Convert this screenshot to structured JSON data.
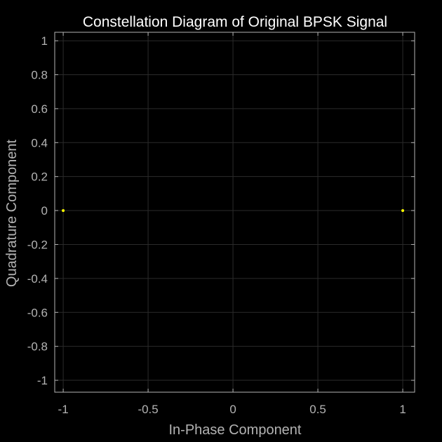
{
  "chart_data": {
    "type": "scatter",
    "title": "Constellation Diagram of Original BPSK Signal",
    "xlabel": "In-Phase Component",
    "ylabel": "Quadrature Component",
    "xlim": [
      -1.05,
      1.07
    ],
    "ylim": [
      -1.07,
      1.05
    ],
    "xticks": [
      -1,
      -0.5,
      0,
      0.5,
      1
    ],
    "xtick_labels": [
      "-1",
      "-0.5",
      "0",
      "0.5",
      "1"
    ],
    "yticks": [
      1,
      0.8,
      0.6,
      0.4,
      0.2,
      0,
      -0.2,
      -0.4,
      -0.6,
      -0.8,
      -1
    ],
    "ytick_labels": [
      "1",
      "0.8",
      "0.6",
      "0.4",
      "0.2",
      "0",
      "-0.2",
      "-0.4",
      "-0.6",
      "-0.8",
      "-1"
    ],
    "grid": true,
    "series": [
      {
        "x": [
          -1,
          1
        ],
        "y": [
          0,
          0
        ],
        "color": "#ffff00"
      }
    ],
    "colors": {
      "background": "#000000",
      "axes": "#b3b3b3",
      "grid": "#2b2b2b",
      "title": "#ffffff",
      "points": "#ffff00"
    }
  }
}
